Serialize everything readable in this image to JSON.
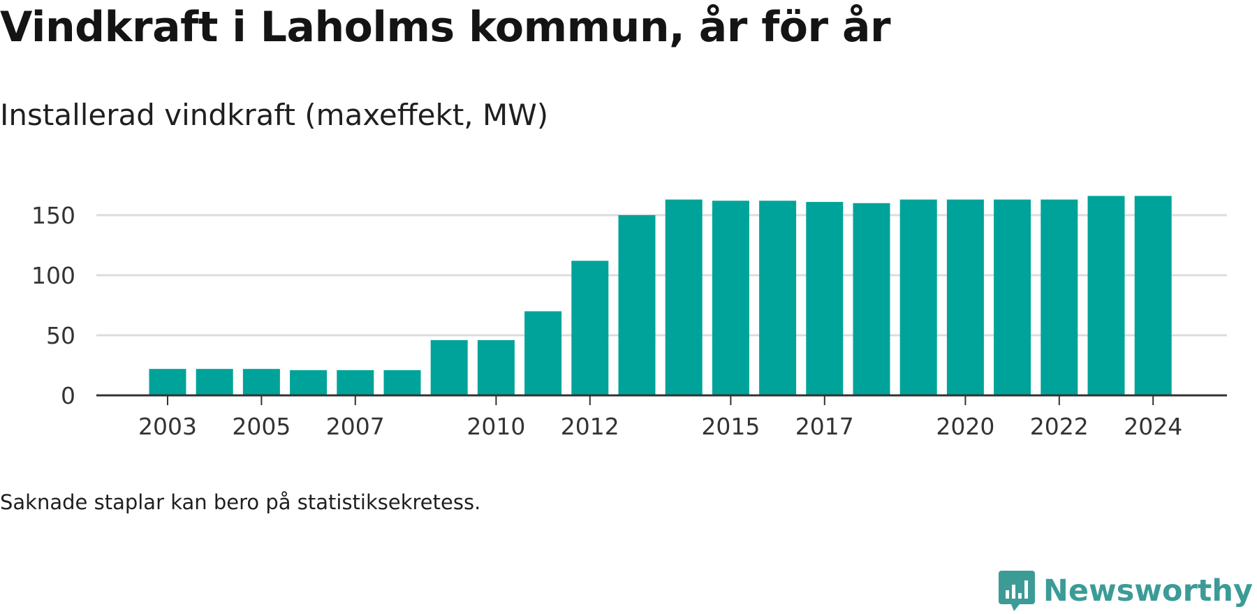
{
  "title": "Vindkraft i Laholms kommun, år för år",
  "subtitle": "Installerad vindkraft (maxeffekt, MW)",
  "note": "Saknade staplar kan bero på statistiksekretess.",
  "brand": {
    "name": "Newsworthy",
    "icon": "newsworthy-logo-icon"
  },
  "colors": {
    "bar": "#00a39a",
    "grid": "#dcdcdc",
    "axis": "#333333",
    "brand": "#3c9b97"
  },
  "chart_data": {
    "type": "bar",
    "title": "Vindkraft i Laholms kommun, år för år",
    "ylabel": "Installerad vindkraft (maxeffekt, MW)",
    "xlabel": "",
    "x": [
      2003,
      2004,
      2005,
      2006,
      2007,
      2008,
      2009,
      2010,
      2011,
      2012,
      2013,
      2014,
      2015,
      2016,
      2017,
      2018,
      2019,
      2020,
      2021,
      2022,
      2023,
      2024
    ],
    "values": [
      22,
      22,
      22,
      21,
      21,
      21,
      46,
      46,
      70,
      112,
      150,
      163,
      162,
      162,
      161,
      160,
      163,
      163,
      163,
      163,
      166,
      166
    ],
    "ylim": [
      0,
      170
    ],
    "yticks": [
      0,
      50,
      100,
      150
    ],
    "xtick_labels": [
      2003,
      2005,
      2007,
      2010,
      2012,
      2015,
      2017,
      2020,
      2022,
      2024
    ],
    "grid": true,
    "legend": "none"
  }
}
